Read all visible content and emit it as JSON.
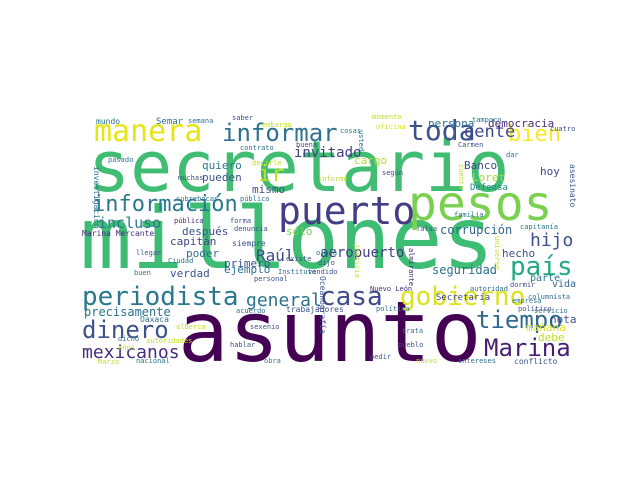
{
  "words": [
    {
      "text": "millones",
      "color": "#3dbc74"
    },
    {
      "text": "secretario",
      "color": "#40bd72"
    },
    {
      "text": "asunto",
      "color": "#440154"
    },
    {
      "text": "pesos",
      "color": "#7ad151"
    },
    {
      "text": "puerto",
      "color": "#433e85"
    },
    {
      "text": "manera",
      "color": "#e7e419"
    },
    {
      "text": "toda",
      "color": "#3b528b"
    },
    {
      "text": "informar",
      "color": "#2c728e"
    },
    {
      "text": "información",
      "color": "#2a788e"
    },
    {
      "text": "periodista",
      "color": "#2a788e"
    },
    {
      "text": "casa",
      "color": "#3e4a89"
    },
    {
      "text": "gobierno",
      "color": "#dde318"
    },
    {
      "text": "país",
      "color": "#22a884"
    },
    {
      "text": "tiempo",
      "color": "#31688e"
    },
    {
      "text": "dinero",
      "color": "#3b528b"
    },
    {
      "text": "Marina",
      "color": "#481f70"
    },
    {
      "text": "mexicanos",
      "color": "#472d7b"
    },
    {
      "text": "bien",
      "color": "#fde725"
    },
    {
      "text": "gente",
      "color": "#3e4989"
    },
    {
      "text": "general",
      "color": "#2c728e"
    },
    {
      "text": "hijo",
      "color": "#3b528b"
    },
    {
      "text": "ir",
      "color": "#c2df23"
    },
    {
      "text": "invitado",
      "color": "#424086"
    },
    {
      "text": "incluso",
      "color": "#2a788e"
    },
    {
      "text": "aeropuerto",
      "color": "#433e85"
    },
    {
      "text": "Raúl",
      "color": "#3e4a89"
    },
    {
      "text": "precisamente",
      "color": "#2c728e"
    },
    {
      "text": "democracia",
      "color": "#472d7b"
    },
    {
      "text": "persona",
      "color": "#2c728e"
    },
    {
      "text": "Banco",
      "color": "#3e4989"
    },
    {
      "text": "cargo",
      "color": "#b5de2b"
    },
    {
      "text": "Loret",
      "color": "#a0da39"
    },
    {
      "text": "corrupción",
      "color": "#31688e"
    },
    {
      "text": "seguridad",
      "color": "#2c728e"
    },
    {
      "text": "hecho",
      "color": "#3b528b"
    },
    {
      "text": "parte",
      "color": "#2a788e"
    },
    {
      "text": "mañana",
      "color": "#dde318"
    },
    {
      "text": "debe",
      "color": "#bddf26"
    },
    {
      "text": "nota",
      "color": "#3b528b"
    },
    {
      "text": "vida",
      "color": "#33638d"
    },
    {
      "text": "hoy",
      "color": "#3e4a89"
    },
    {
      "text": "Defensa",
      "color": "#26828e"
    },
    {
      "text": "Secretaría",
      "color": "#3e4989"
    },
    {
      "text": "después",
      "color": "#3b528b"
    },
    {
      "text": "capitán",
      "color": "#414487"
    },
    {
      "text": "primero",
      "color": "#3b528b"
    },
    {
      "text": "poder",
      "color": "#2c728e"
    },
    {
      "text": "verdad",
      "color": "#3b528b"
    },
    {
      "text": "ejemplo",
      "color": "#2c728e"
    },
    {
      "text": "mismo",
      "color": "#3b528b"
    },
    {
      "text": "quiero",
      "color": "#2a788e"
    },
    {
      "text": "pueden",
      "color": "#3b528b"
    },
    {
      "text": "sólo",
      "color": "#7ad151"
    },
    {
      "text": "siempre",
      "color": "#3b528b"
    },
    {
      "text": "Marina Mercante",
      "color": "#472d7b"
    },
    {
      "text": "Semar",
      "color": "#2c728e"
    },
    {
      "text": "mundo",
      "color": "#2c728e"
    },
    {
      "text": "semana",
      "color": "#2c728e"
    },
    {
      "text": "saber",
      "color": "#3b528b"
    },
    {
      "text": "contrato",
      "color": "#2c728e"
    },
    {
      "text": "buena",
      "color": "#3e4989"
    },
    {
      "text": "cosas",
      "color": "#26828e"
    },
    {
      "text": "oficina",
      "color": "#d8e219"
    },
    {
      "text": "tampoco",
      "color": "#2c728e"
    },
    {
      "text": "Carmen",
      "color": "#3b528b"
    },
    {
      "text": "cuatro",
      "color": "#3b528b"
    },
    {
      "text": "dar",
      "color": "#2c728e"
    },
    {
      "text": "pasado",
      "color": "#2c728e"
    },
    {
      "text": "muchas",
      "color": "#3b528b"
    },
    {
      "text": "decirle",
      "color": "#c2df23"
    },
    {
      "text": "informe",
      "color": "#bddf26"
    },
    {
      "text": "según",
      "color": "#3b528b"
    },
    {
      "text": "cubrebocas",
      "color": "#2c728e"
    },
    {
      "text": "público",
      "color": "#2c728e"
    },
    {
      "text": "forma",
      "color": "#3b528b"
    },
    {
      "text": "familia",
      "color": "#2c728e"
    },
    {
      "text": "falsa",
      "color": "#3b528b"
    },
    {
      "text": "capitanía",
      "color": "#2a788e"
    },
    {
      "text": "pública",
      "color": "#472d7b"
    },
    {
      "text": "denuncia",
      "color": "#3b528b"
    },
    {
      "text": "Ciudad",
      "color": "#2c728e"
    },
    {
      "text": "llegar",
      "color": "#3b528b"
    },
    {
      "text": "buen",
      "color": "#2c728e"
    },
    {
      "text": "existe",
      "color": "#3b528b"
    },
    {
      "text": "ojalá",
      "color": "#2c728e"
    },
    {
      "text": "dijo",
      "color": "#3b528b"
    },
    {
      "text": "Nuevo León",
      "color": "#472d7b"
    },
    {
      "text": "personal",
      "color": "#3b528b"
    },
    {
      "text": "Instituto",
      "color": "#2c728e"
    },
    {
      "text": "vendido",
      "color": "#3b528b"
    },
    {
      "text": "autoridad",
      "color": "#2c728e"
    },
    {
      "text": "dormir",
      "color": "#3b528b"
    },
    {
      "text": "columnista",
      "color": "#2c728e"
    },
    {
      "text": "empresa",
      "color": "#2c728e"
    },
    {
      "text": "servicio",
      "color": "#2c728e"
    },
    {
      "text": "político",
      "color": "#3b528b"
    },
    {
      "text": "acuerdo",
      "color": "#2c728e"
    },
    {
      "text": "trabajadores",
      "color": "#3b528b"
    },
    {
      "text": "política",
      "color": "#2c728e"
    },
    {
      "text": "Oaxaca",
      "color": "#2c728e"
    },
    {
      "text": "sexenio",
      "color": "#3b528b"
    },
    {
      "text": "trata",
      "color": "#2c728e"
    },
    {
      "text": "dicho",
      "color": "#2c728e"
    },
    {
      "text": "autoridades",
      "color": "#c2df23"
    },
    {
      "text": "hablar",
      "color": "#3b528b"
    },
    {
      "text": "pueblo",
      "color": "#3b528b"
    },
    {
      "text": "nacional",
      "color": "#2c728e"
    },
    {
      "text": "obra",
      "color": "#2c728e"
    },
    {
      "text": "pedir",
      "color": "#3b528b"
    },
    {
      "text": "nuevo",
      "color": "#c2df23"
    },
    {
      "text": "intereses",
      "color": "#2c728e"
    },
    {
      "text": "conflicto",
      "color": "#3b528b"
    },
    {
      "text": "alberca",
      "color": "#c2df23"
    },
    {
      "text": "años",
      "color": "#c2df23"
    },
    {
      "text": "Marzo",
      "color": "#c2df23"
    },
    {
      "text": "embargo",
      "color": "#c2df23"
    },
    {
      "text": "momento",
      "color": "#c2df23"
    },
    {
      "text": "investigación",
      "color": "#2c728e"
    },
    {
      "text": "Oceanografía",
      "color": "#3b528b"
    },
    {
      "text": "justicia",
      "color": "#c2df23"
    },
    {
      "text": "almirante",
      "color": "#472d7b"
    },
    {
      "text": "universo",
      "color": "#c2df23"
    },
    {
      "text": "asesinato",
      "color": "#3b528b"
    },
    {
      "text": "cuenta",
      "color": "#c2df23"
    },
    {
      "text": "usted",
      "color": "#2c728e"
    },
    {
      "text": "modo",
      "color": "#2c728e"
    }
  ]
}
